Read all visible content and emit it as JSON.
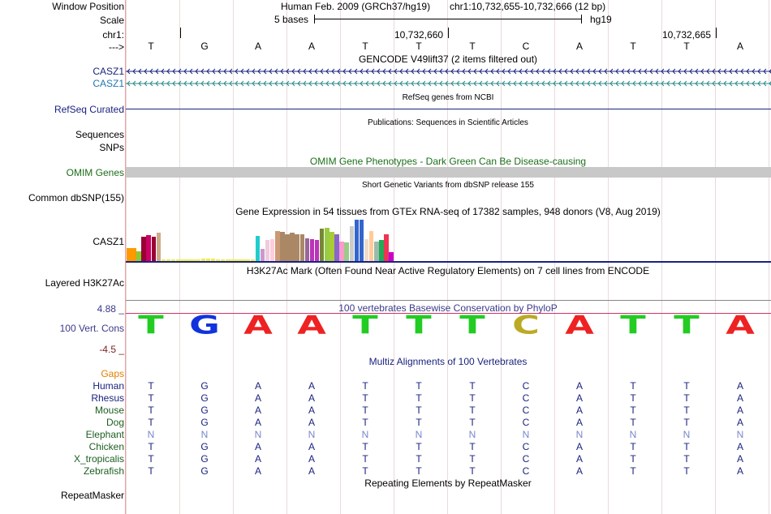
{
  "header": {
    "assembly": "Human Feb. 2009 (GRCh37/hg19)",
    "position": "chr1:10,732,655-10,732,666 (12 bp)",
    "scale_label": "5 bases",
    "scale_db": "hg19",
    "pos1": "10,732,660",
    "pos2": "10,732,665",
    "arrow": "--->"
  },
  "labels": {
    "window_position": "Window Position",
    "scale": "Scale",
    "chr": "chr1:",
    "casz1_a": "CASZ1",
    "casz1_b": "CASZ1",
    "refseq": "RefSeq Curated",
    "sequences": "Sequences",
    "snps": "SNPs",
    "omim": "OMIM Genes",
    "dbsnp": "Common dbSNP(155)",
    "gtex_gene": "CASZ1",
    "h3k27": "Layered H3K27Ac",
    "cons_max": "4.88 _",
    "cons_name": "100 Vert. Cons",
    "cons_min": "-4.5 _",
    "gaps": "Gaps",
    "repeatmasker": "RepeatMasker"
  },
  "tracks": {
    "gencode": "GENCODE V49lift37 (2 items filtered out)",
    "refseq": "RefSeq genes from NCBI",
    "publications": "Publications: Sequences in Scientific Articles",
    "omim": "OMIM Gene Phenotypes - Dark Green Can Be Disease-causing",
    "dbsnp": "Short Genetic Variants from dbSNP release 155",
    "gtex": "Gene Expression in 54 tissues from GTEx RNA-seq of 17382 samples, 948 donors (V8, Aug 2019)",
    "h3k27": "H3K27Ac Mark (Often Found Near Active Regulatory Elements) on 7 cell lines from ENCODE",
    "phylop": "100 vertebrates Basewise Conservation by PhyloP",
    "multiz": "Multiz Alignments of 100 Vertebrates",
    "repeat": "Repeating Elements by RepeatMasker"
  },
  "bases": [
    "T",
    "G",
    "A",
    "A",
    "T",
    "T",
    "T",
    "C",
    "A",
    "T",
    "T",
    "A"
  ],
  "conservation": {
    "letters": [
      "T",
      "G",
      "A",
      "A",
      "T",
      "T",
      "T",
      "C",
      "A",
      "T",
      "T",
      "A"
    ],
    "colors": [
      "#22cc22",
      "#1133dd",
      "#ee2222",
      "#ee2222",
      "#22cc22",
      "#22cc22",
      "#22cc22",
      "#bbaa22",
      "#ee2222",
      "#22cc22",
      "#22cc22",
      "#ee2222"
    ]
  },
  "gtex_colors": [
    "#ff9900",
    "#ff9900",
    "#88cc33",
    "#990033",
    "#cc0066",
    "#990033",
    "#ccaa88",
    "#eeee44",
    "#eeee44",
    "#eeee44",
    "#eeee44",
    "#eeee44",
    "#eeee44",
    "#eeee44",
    "#eeee44",
    "#eeee44",
    "#eeee44",
    "#eeee44",
    "#eeee44",
    "#eeee44",
    "#eeee44",
    "#eeee44",
    "#eeee44",
    "#eeee44",
    "#eeee44",
    "#eeee44",
    "#22cccc",
    "#cc99cc",
    "#eeccdd",
    "#ffccdd",
    "#cc9977",
    "#aa8866",
    "#aa8866",
    "#aa8866",
    "#aa8866",
    "#aa8866",
    "#996699",
    "#bb33bb",
    "#bb33bb",
    "#778833",
    "#99cc44",
    "#aacc33",
    "#8866cc",
    "#ff99cc",
    "#99cc88",
    "#cccccc",
    "#3366cc",
    "#3366cc",
    "#eeddcc",
    "#ffcc99",
    "#99bbaa",
    "#22aa55",
    "#ee3355",
    "#cc00cc"
  ],
  "gtex_values": [
    0.3,
    0.3,
    0.22,
    0.55,
    0.6,
    0.55,
    0.65,
    0.04,
    0.04,
    0.04,
    0.04,
    0.04,
    0.04,
    0.04,
    0.04,
    0.06,
    0.06,
    0.06,
    0.04,
    0.04,
    0.04,
    0.04,
    0.04,
    0.04,
    0.04,
    0.04,
    0.58,
    0.28,
    0.48,
    0.5,
    0.68,
    0.66,
    0.62,
    0.64,
    0.62,
    0.62,
    0.52,
    0.5,
    0.48,
    0.74,
    0.76,
    0.66,
    0.62,
    0.44,
    0.42,
    0.8,
    0.95,
    0.95,
    0.5,
    0.68,
    0.45,
    0.48,
    0.62,
    0.2
  ],
  "species": [
    {
      "name": "Human",
      "color": "#1a237e",
      "seq": "TGAATTTCATTA",
      "seq_color": "#1a237e"
    },
    {
      "name": "Rhesus",
      "color": "#1a237e",
      "seq": "TGAATTTCATTA",
      "seq_color": "#1a237e"
    },
    {
      "name": "Mouse",
      "color": "#1b5e20",
      "seq": "TGAATTTCATTA",
      "seq_color": "#1a237e"
    },
    {
      "name": "Dog",
      "color": "#1b5e20",
      "seq": "TGAATTTCATTA",
      "seq_color": "#1a237e"
    },
    {
      "name": "Elephant",
      "color": "#1b5e20",
      "seq": "NNNNNNNNNNNN",
      "seq_color": "#7986cb"
    },
    {
      "name": "Chicken",
      "color": "#1b5e20",
      "seq": "TGAATTTCATTA",
      "seq_color": "#1a237e"
    },
    {
      "name": "X_tropicalis",
      "color": "#1b5e20",
      "seq": "TGAATTTCATTA",
      "seq_color": "#1a237e"
    },
    {
      "name": "Zebrafish",
      "color": "#1b5e20",
      "seq": "TGAATTTCATTA",
      "seq_color": "#1a237e"
    }
  ],
  "colors": {
    "navy": "#1a237e",
    "teal": "#1f78b4",
    "green": "#1b6e1b",
    "purple": "#3a3a8a",
    "maroon": "#7a1f1f",
    "orange": "#e08000",
    "omim_bar": "#c8c8c8",
    "gencode_teal": "#2a8a8a"
  }
}
